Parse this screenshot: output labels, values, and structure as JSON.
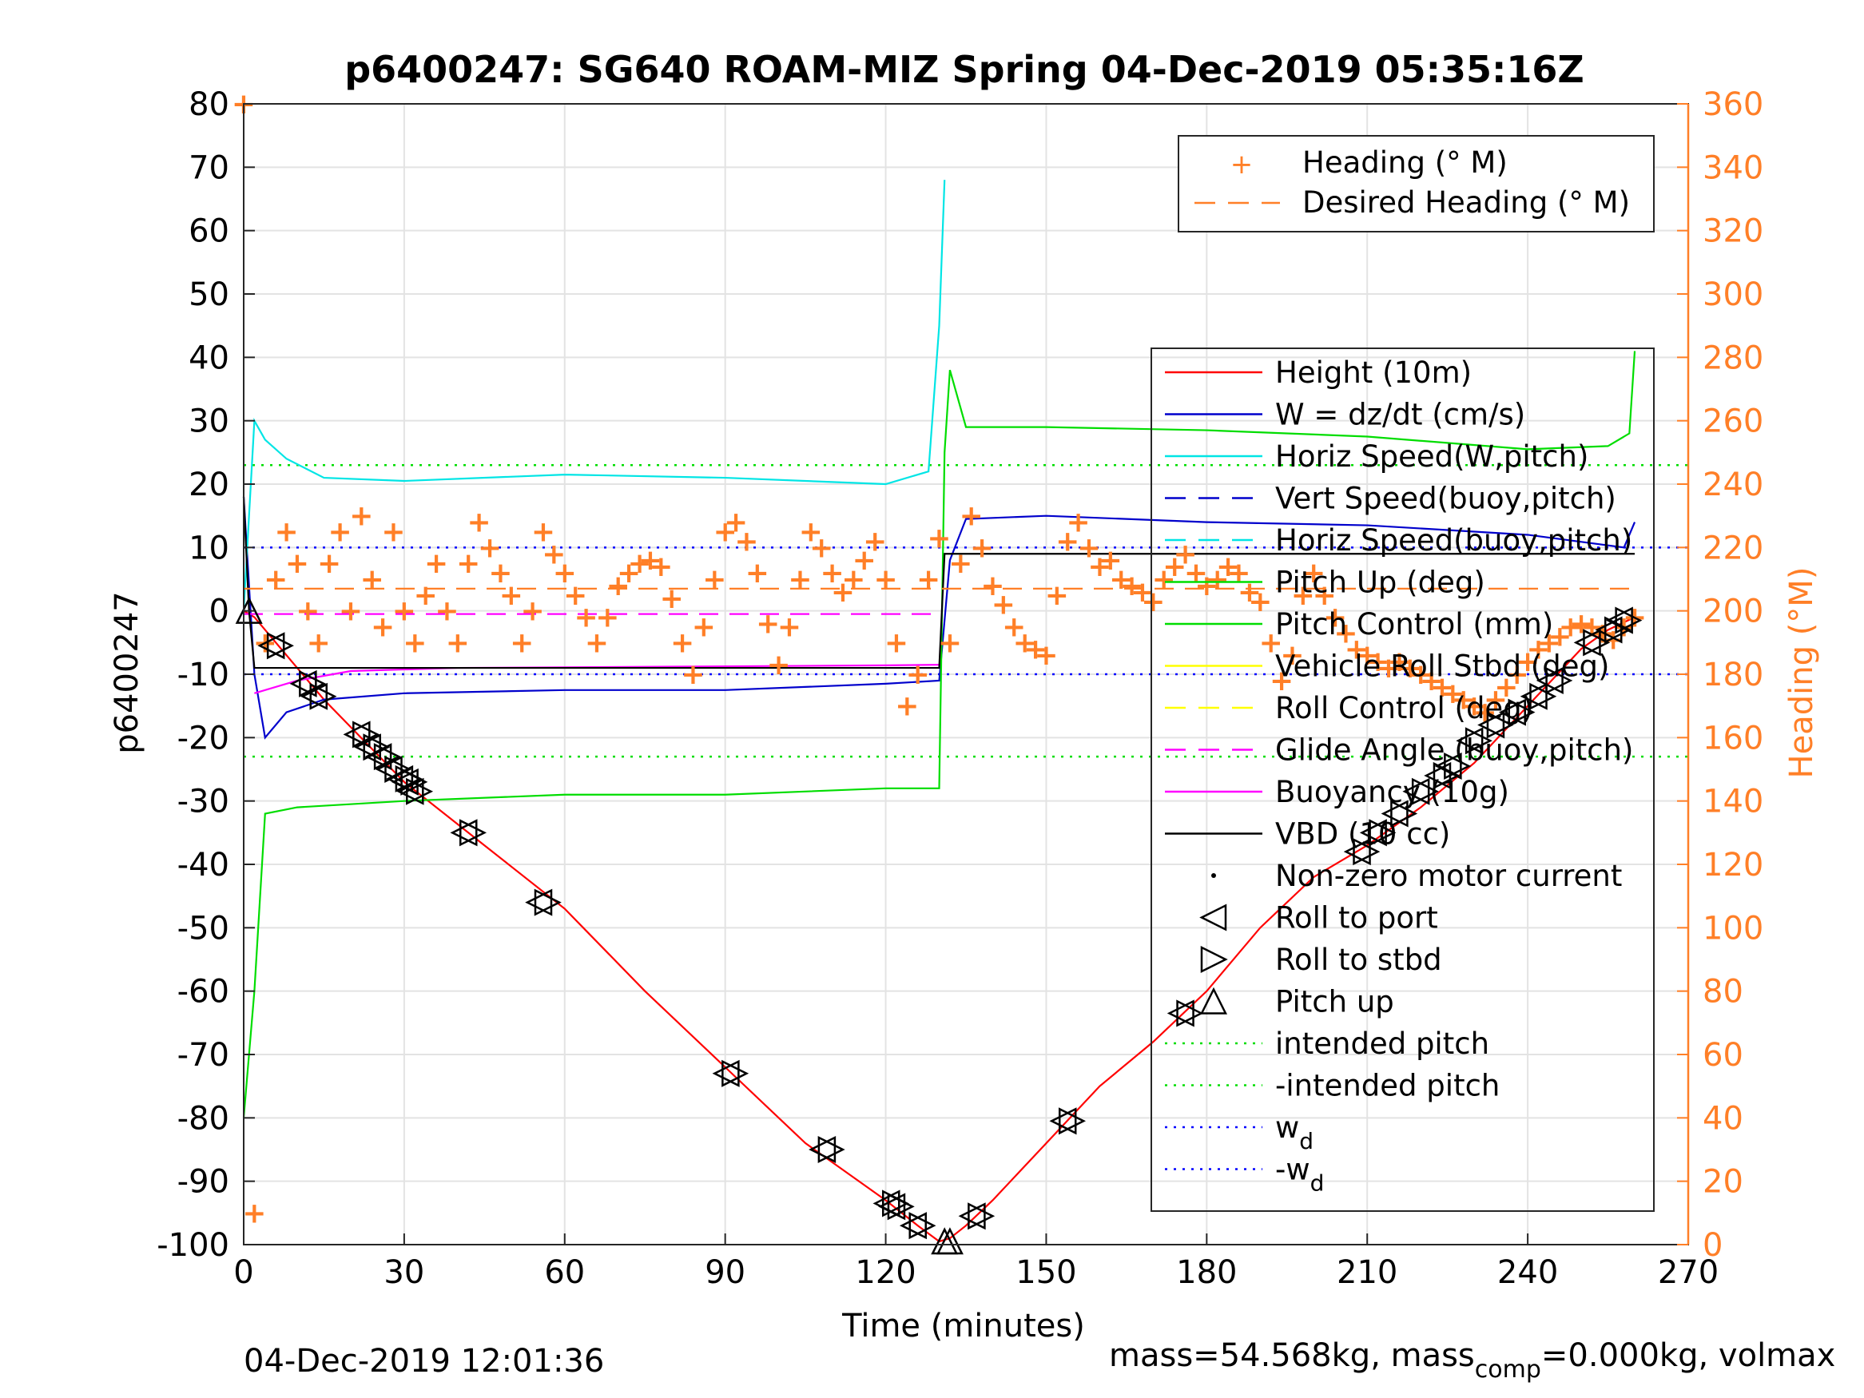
{
  "chart_data": {
    "type": "line",
    "title": "p6400247: SG640 ROAM-MIZ Spring 04-Dec-2019 05:35:16Z",
    "xlabel": "Time (minutes)",
    "ylabel_left": "p6400247",
    "ylabel_right": "Heading (°M)",
    "footer_left": "04-Dec-2019 12:01:36",
    "footer_right_parts": [
      "mass=54.568kg, mass",
      "comp",
      "=0.000kg, volmax"
    ],
    "xlim": [
      0,
      270
    ],
    "ylim_left": [
      -100,
      80
    ],
    "ylim_right": [
      0,
      360
    ],
    "xticks": [
      0,
      30,
      60,
      90,
      120,
      150,
      180,
      210,
      240,
      270
    ],
    "yticks_left": [
      80,
      70,
      60,
      50,
      40,
      30,
      20,
      10,
      0,
      -10,
      -20,
      -30,
      -40,
      -50,
      -60,
      -70,
      -80,
      -90,
      -100
    ],
    "yticks_right": [
      360,
      340,
      320,
      300,
      280,
      260,
      240,
      220,
      200,
      180,
      160,
      140,
      120,
      100,
      80,
      60,
      40,
      20,
      0
    ],
    "grid": true,
    "colors": {
      "height": "#ff0000",
      "w": "#0000cc",
      "horiz_speed": "#00e5e5",
      "pitch": "#00dd00",
      "roll": "#ffff00",
      "glide": "#ff00ff",
      "vbd": "#000000",
      "heading": "#ff7f27",
      "axis_right": "#ff7f27",
      "intended": "#00dd00",
      "wd": "#0000ff"
    },
    "legend_top": {
      "placement": "top-right",
      "entries": [
        "Heading (° M)",
        "Desired Heading (° M)"
      ]
    },
    "legend_main": {
      "placement": "right",
      "entries": [
        {
          "label": "Height (10m)",
          "style": "solid",
          "color": "#ff0000"
        },
        {
          "label": "W = dz/dt (cm/s)",
          "style": "solid",
          "color": "#0000cc"
        },
        {
          "label": "Horiz Speed(W,pitch)",
          "style": "solid",
          "color": "#00e5e5"
        },
        {
          "label": "Vert Speed(buoy,pitch)",
          "style": "dashed",
          "color": "#0000cc"
        },
        {
          "label": "Horiz Speed(buoy,pitch)",
          "style": "dashed",
          "color": "#00e5e5"
        },
        {
          "label": "Pitch Up (deg)",
          "style": "solid",
          "color": "#00dd00"
        },
        {
          "label": "Pitch Control (mm)",
          "style": "solid",
          "color": "#00dd00"
        },
        {
          "label": "Vehicle Roll Stbd (deg)",
          "style": "solid",
          "color": "#ffff00"
        },
        {
          "label": "Roll Control (deg)",
          "style": "dashed",
          "color": "#ffff00"
        },
        {
          "label": "Glide Angle (buoy,pitch)",
          "style": "dashed",
          "color": "#ff00ff"
        },
        {
          "label": "Buoyancy (10g)",
          "style": "solid",
          "color": "#ff00ff"
        },
        {
          "label": "VBD (10 cc)",
          "style": "solid",
          "color": "#000000"
        },
        {
          "label": "Non-zero motor current",
          "style": "dot",
          "color": "#000000"
        },
        {
          "label": "Roll to port",
          "style": "tri-left",
          "color": "#000000"
        },
        {
          "label": "Roll to stbd",
          "style": "tri-right",
          "color": "#000000"
        },
        {
          "label": "Pitch up",
          "style": "tri-up",
          "color": "#000000"
        },
        {
          "label": "intended pitch",
          "style": "dotted",
          "color": "#00dd00"
        },
        {
          "label": "-intended pitch",
          "style": "dotted",
          "color": "#00dd00"
        },
        {
          "label": "w",
          "sub": "d",
          "style": "dotted",
          "color": "#0000ff"
        },
        {
          "label": "-w",
          "sub": "d",
          "style": "dotted",
          "color": "#0000ff"
        }
      ]
    },
    "reference_lines": {
      "intended_pitch": 23,
      "wd": 10
    },
    "series": [
      {
        "name": "Height (10m)",
        "x": [
          0,
          2,
          6,
          15,
          30,
          45,
          60,
          75,
          90,
          105,
          120,
          126,
          130,
          132,
          135,
          140,
          150,
          160,
          170,
          180,
          190,
          200,
          210,
          220,
          230,
          240,
          250,
          255,
          260
        ],
        "y": [
          0,
          -1,
          -5,
          -14,
          -27,
          -37,
          -47,
          -60,
          -72,
          -84,
          -93,
          -97,
          -99.5,
          -99,
          -97,
          -93,
          -84,
          -75,
          -68,
          -60,
          -50,
          -42,
          -37,
          -31,
          -24,
          -15,
          -6,
          -3,
          -1
        ]
      },
      {
        "name": "W = dz/dt (cm/s)",
        "x": [
          0,
          2,
          4,
          8,
          15,
          30,
          60,
          90,
          120,
          130,
          132,
          135,
          150,
          180,
          210,
          240,
          258,
          260
        ],
        "y": [
          18,
          -10,
          -20,
          -16,
          -14,
          -13,
          -12.5,
          -12.5,
          -11.5,
          -11,
          8,
          14.5,
          15,
          14,
          13.5,
          12,
          10,
          14
        ]
      },
      {
        "name": "Horiz Speed(W,pitch)",
        "x": [
          0,
          1,
          2,
          4,
          8,
          15,
          30,
          60,
          90,
          120,
          128,
          130,
          131
        ],
        "y": [
          0,
          15,
          30,
          27,
          24,
          21,
          20.5,
          21.5,
          21,
          20,
          22,
          45,
          68
        ]
      },
      {
        "name": "Pitch Up (deg)",
        "x": [
          0,
          2,
          4,
          10,
          30,
          60,
          90,
          120,
          130,
          131,
          132,
          135,
          150,
          180,
          210,
          240,
          255,
          259,
          260
        ],
        "y": [
          -80,
          -60,
          -32,
          -31,
          -30,
          -29,
          -29,
          -28,
          -28,
          25,
          38,
          29,
          29,
          28.5,
          27.5,
          25.5,
          26,
          28,
          41
        ]
      },
      {
        "name": "Glide Angle (buoy,pitch)",
        "x": [
          0,
          130
        ],
        "y": [
          -0.5,
          -0.5
        ]
      },
      {
        "name": "Buoyancy (10g)",
        "x": [
          2,
          10,
          20,
          40,
          80,
          120,
          130
        ],
        "y": [
          -13,
          -11,
          -9.5,
          -9,
          -8.8,
          -8.6,
          -8.5
        ]
      },
      {
        "name": "VBD (10 cc)",
        "x": [
          0,
          1,
          2,
          130,
          131,
          260
        ],
        "y": [
          18,
          0,
          -9,
          -9,
          9,
          9
        ]
      },
      {
        "name": "Heading (° M)",
        "axis": "right",
        "style": "marker-plus",
        "x": [
          0,
          2,
          4,
          6,
          8,
          10,
          12,
          14,
          16,
          18,
          20,
          22,
          24,
          26,
          28,
          30,
          32,
          34,
          36,
          38,
          40,
          42,
          44,
          46,
          48,
          50,
          52,
          54,
          56,
          58,
          60,
          62,
          64,
          66,
          68,
          70,
          72,
          74,
          76,
          78,
          80,
          82,
          84,
          86,
          88,
          90,
          92,
          94,
          96,
          98,
          100,
          102,
          104,
          106,
          108,
          110,
          112,
          114,
          116,
          118,
          120,
          122,
          124,
          126,
          128,
          130,
          132,
          134,
          136,
          138,
          140,
          142,
          144,
          146,
          148,
          150,
          152,
          154,
          156,
          158,
          160,
          162,
          164,
          166,
          168,
          170,
          172,
          174,
          176,
          178,
          180,
          182,
          184,
          186,
          188,
          190,
          192,
          194,
          196,
          198,
          200,
          202,
          204,
          206,
          208,
          210,
          212,
          214,
          216,
          218,
          220,
          222,
          224,
          226,
          228,
          230,
          232,
          234,
          236,
          238,
          240,
          242,
          244,
          246,
          248,
          250,
          252,
          254,
          256,
          258,
          260
        ],
        "y": [
          360,
          10,
          190,
          210,
          225,
          215,
          200,
          190,
          215,
          225,
          200,
          230,
          210,
          195,
          225,
          200,
          190,
          205,
          215,
          200,
          190,
          215,
          228,
          220,
          212,
          205,
          190,
          200,
          225,
          218,
          212,
          205,
          198,
          190,
          198,
          208,
          212,
          215,
          216,
          214,
          204,
          190,
          180,
          195,
          210,
          225,
          228,
          222,
          212,
          196,
          183,
          195,
          210,
          225,
          220,
          212,
          206,
          210,
          216,
          222,
          210,
          190,
          170,
          180,
          210,
          223,
          190,
          215,
          230,
          220,
          208,
          202,
          195,
          190,
          188,
          186,
          205,
          222,
          228,
          220,
          214,
          216,
          210,
          208,
          206,
          203,
          210,
          214,
          218,
          212,
          208,
          210,
          214,
          212,
          206,
          203,
          190,
          178,
          186,
          205,
          212,
          205,
          198,
          193,
          188,
          186,
          184,
          182,
          184,
          182,
          180,
          178,
          176,
          174,
          172,
          170,
          168,
          172,
          176,
          180,
          184,
          188,
          190,
          192,
          195,
          196,
          195,
          193,
          191,
          195,
          198
        ]
      },
      {
        "name": "Desired Heading (° M)",
        "axis": "right",
        "style": "dashed",
        "x": [
          0,
          130,
          131,
          260
        ],
        "y": [
          207,
          207,
          207,
          207
        ]
      }
    ],
    "markers": {
      "roll_to_port_stbd_x": [
        6,
        12,
        14,
        22,
        24,
        26,
        28,
        30,
        31,
        32,
        42,
        56,
        91,
        109,
        121,
        122,
        126,
        137,
        154,
        176,
        209,
        212,
        216,
        220,
        224,
        226,
        230,
        234,
        238,
        242,
        245,
        252,
        256,
        258
      ],
      "roll_to_port_stbd_y": [
        -5.5,
        -11.5,
        -13.5,
        -19.5,
        -21.5,
        -23,
        -25,
        -26.5,
        -27,
        -28.5,
        -35,
        -46,
        -73,
        -85,
        -93.5,
        -94,
        -97,
        -95.5,
        -80.5,
        -63.5,
        -38,
        -35,
        -32,
        -28.5,
        -26,
        -24.5,
        -20.5,
        -18,
        -16,
        -13.5,
        -11,
        -5,
        -3,
        -1.5
      ],
      "pitch_up_x": [
        1,
        131,
        132
      ],
      "pitch_up_y": [
        0,
        -99.5,
        -99.5
      ]
    }
  }
}
